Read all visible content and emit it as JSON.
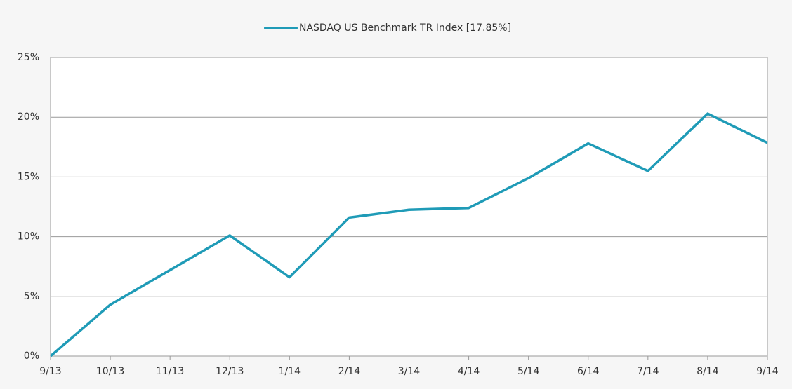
{
  "chart_data": {
    "type": "line",
    "categories": [
      "9/13",
      "10/13",
      "11/13",
      "12/13",
      "1/14",
      "2/14",
      "3/14",
      "4/14",
      "5/14",
      "6/14",
      "7/14",
      "8/14",
      "9/14"
    ],
    "series": [
      {
        "name": "NASDAQ US Benchmark TR Index [17.85%]",
        "color": "#1f9bb7",
        "values": [
          0,
          4.3,
          7.2,
          10.1,
          6.6,
          11.6,
          12.25,
          12.4,
          14.9,
          17.8,
          15.5,
          20.3,
          17.85
        ]
      }
    ],
    "ylim": [
      0,
      25
    ],
    "yticks": [
      {
        "value": 0,
        "label": "0%"
      },
      {
        "value": 5,
        "label": "5%"
      },
      {
        "value": 10,
        "label": "10%"
      },
      {
        "value": 15,
        "label": "15%"
      },
      {
        "value": 20,
        "label": "20%"
      },
      {
        "value": 25,
        "label": "25%"
      }
    ],
    "grid": true,
    "legend": "top"
  }
}
